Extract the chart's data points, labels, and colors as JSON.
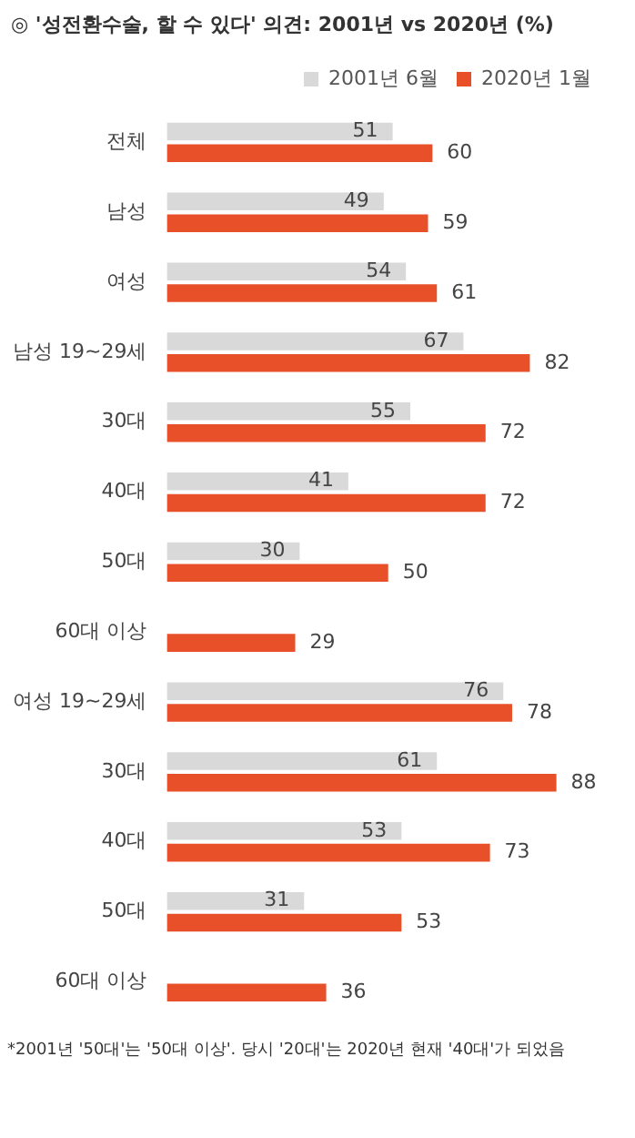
{
  "chart_data": {
    "type": "bar",
    "orientation": "horizontal",
    "title": "◎ '성전환수술, 할 수 있다' 의견: 2001년 vs 2020년 (%)",
    "categories": [
      "전체",
      "남성",
      "여성",
      "남성 19~29세",
      "30대",
      "40대",
      "50대",
      "60대 이상",
      "여성 19~29세",
      "30대",
      "40대",
      "50대",
      "60대 이상"
    ],
    "series": [
      {
        "name": "2001년 6월",
        "color": "#d9d9d9",
        "values": [
          51,
          49,
          54,
          67,
          55,
          41,
          30,
          null,
          76,
          61,
          53,
          31,
          null
        ]
      },
      {
        "name": "2020년 1월",
        "color": "#e8502a",
        "values": [
          60,
          59,
          61,
          82,
          72,
          72,
          50,
          29,
          78,
          88,
          73,
          53,
          36
        ]
      }
    ],
    "data_labels": true,
    "legend": "top right",
    "annotations": [
      "*2001년 '50대'는 '50대 이상'. 당시 '20대'는 2020년 현재 '40대'가 되었음"
    ]
  }
}
